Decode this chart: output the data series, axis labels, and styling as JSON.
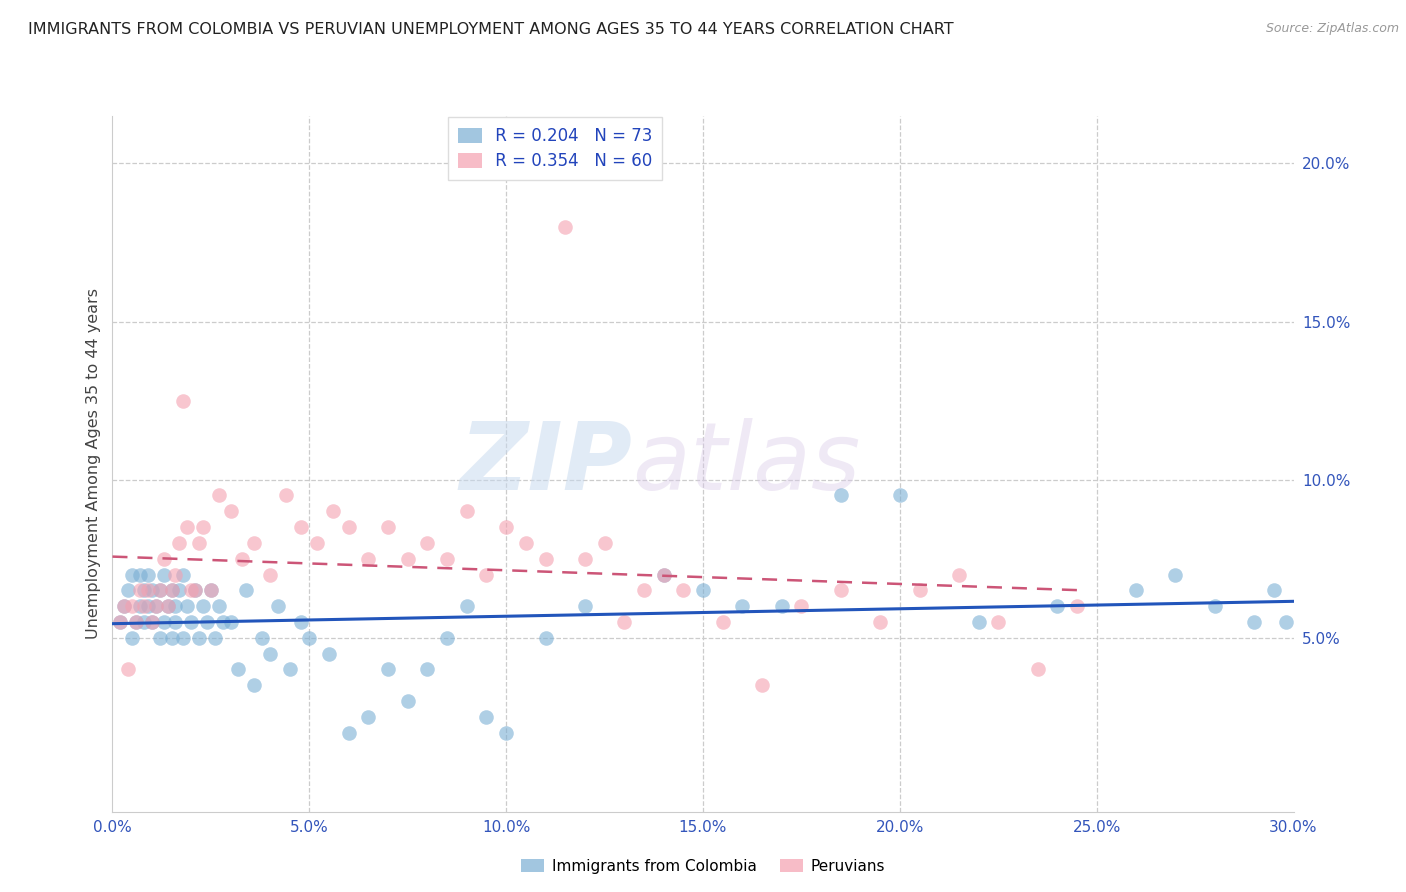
{
  "title": "IMMIGRANTS FROM COLOMBIA VS PERUVIAN UNEMPLOYMENT AMONG AGES 35 TO 44 YEARS CORRELATION CHART",
  "source": "Source: ZipAtlas.com",
  "ylabel": "Unemployment Among Ages 35 to 44 years",
  "xlim": [
    0.0,
    0.3
  ],
  "ylim": [
    -0.005,
    0.215
  ],
  "colombia_R": 0.204,
  "colombia_N": 73,
  "peru_R": 0.354,
  "peru_N": 60,
  "colombia_color": "#7BAFD4",
  "peru_color": "#F4A0B0",
  "colombia_line_color": "#2255BB",
  "peru_line_color": "#CC5577",
  "watermark_zip": "ZIP",
  "watermark_atlas": "atlas",
  "colombia_scatter_x": [
    0.002,
    0.003,
    0.004,
    0.005,
    0.005,
    0.006,
    0.007,
    0.007,
    0.008,
    0.008,
    0.009,
    0.009,
    0.01,
    0.01,
    0.011,
    0.012,
    0.012,
    0.013,
    0.013,
    0.014,
    0.015,
    0.015,
    0.016,
    0.016,
    0.017,
    0.018,
    0.018,
    0.019,
    0.02,
    0.021,
    0.022,
    0.023,
    0.024,
    0.025,
    0.026,
    0.027,
    0.028,
    0.03,
    0.032,
    0.034,
    0.036,
    0.038,
    0.04,
    0.042,
    0.045,
    0.048,
    0.05,
    0.055,
    0.06,
    0.065,
    0.07,
    0.075,
    0.08,
    0.085,
    0.09,
    0.095,
    0.1,
    0.11,
    0.12,
    0.14,
    0.15,
    0.16,
    0.17,
    0.185,
    0.2,
    0.22,
    0.24,
    0.26,
    0.27,
    0.28,
    0.29,
    0.295,
    0.298
  ],
  "colombia_scatter_y": [
    0.055,
    0.06,
    0.065,
    0.05,
    0.07,
    0.055,
    0.06,
    0.07,
    0.055,
    0.065,
    0.06,
    0.07,
    0.055,
    0.065,
    0.06,
    0.05,
    0.065,
    0.055,
    0.07,
    0.06,
    0.05,
    0.065,
    0.055,
    0.06,
    0.065,
    0.05,
    0.07,
    0.06,
    0.055,
    0.065,
    0.05,
    0.06,
    0.055,
    0.065,
    0.05,
    0.06,
    0.055,
    0.055,
    0.04,
    0.065,
    0.035,
    0.05,
    0.045,
    0.06,
    0.04,
    0.055,
    0.05,
    0.045,
    0.02,
    0.025,
    0.04,
    0.03,
    0.04,
    0.05,
    0.06,
    0.025,
    0.02,
    0.05,
    0.06,
    0.07,
    0.065,
    0.06,
    0.06,
    0.095,
    0.095,
    0.055,
    0.06,
    0.065,
    0.07,
    0.06,
    0.055,
    0.065,
    0.055
  ],
  "peru_scatter_x": [
    0.002,
    0.003,
    0.004,
    0.005,
    0.006,
    0.007,
    0.008,
    0.009,
    0.01,
    0.011,
    0.012,
    0.013,
    0.014,
    0.015,
    0.016,
    0.017,
    0.018,
    0.019,
    0.02,
    0.021,
    0.022,
    0.023,
    0.025,
    0.027,
    0.03,
    0.033,
    0.036,
    0.04,
    0.044,
    0.048,
    0.052,
    0.056,
    0.06,
    0.065,
    0.07,
    0.075,
    0.08,
    0.085,
    0.09,
    0.095,
    0.1,
    0.105,
    0.11,
    0.115,
    0.12,
    0.125,
    0.13,
    0.135,
    0.14,
    0.145,
    0.155,
    0.165,
    0.175,
    0.185,
    0.195,
    0.205,
    0.215,
    0.225,
    0.235,
    0.245
  ],
  "peru_scatter_y": [
    0.055,
    0.06,
    0.04,
    0.06,
    0.055,
    0.065,
    0.06,
    0.065,
    0.055,
    0.06,
    0.065,
    0.075,
    0.06,
    0.065,
    0.07,
    0.08,
    0.125,
    0.085,
    0.065,
    0.065,
    0.08,
    0.085,
    0.065,
    0.095,
    0.09,
    0.075,
    0.08,
    0.07,
    0.095,
    0.085,
    0.08,
    0.09,
    0.085,
    0.075,
    0.085,
    0.075,
    0.08,
    0.075,
    0.09,
    0.07,
    0.085,
    0.08,
    0.075,
    0.18,
    0.075,
    0.08,
    0.055,
    0.065,
    0.07,
    0.065,
    0.055,
    0.035,
    0.06,
    0.065,
    0.055,
    0.065,
    0.07,
    0.055,
    0.04,
    0.06
  ]
}
